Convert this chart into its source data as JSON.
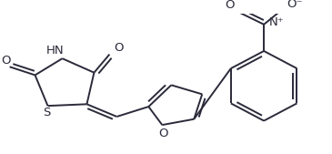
{
  "background_color": "#ffffff",
  "line_color": "#2a2a3a",
  "lw": 1.4,
  "figsize": [
    3.65,
    1.69
  ],
  "dpi": 100,
  "xlim": [
    0,
    365
  ],
  "ylim": [
    0,
    169
  ]
}
